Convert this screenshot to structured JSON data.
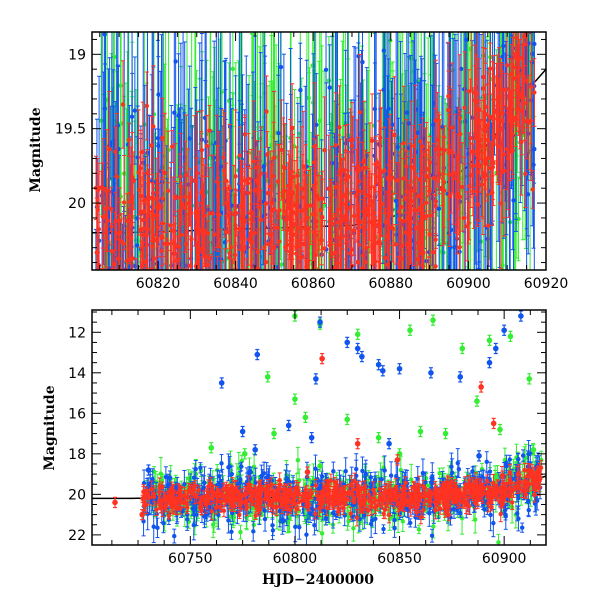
{
  "colors": {
    "green": "#33ee33",
    "blue": "#1155ee",
    "red": "#ff3322",
    "curve": "#000000"
  },
  "chart_data": [
    {
      "type": "scatter",
      "id": "top",
      "xlim": [
        60803,
        60920
      ],
      "ylim": [
        20.45,
        18.85
      ],
      "inverted_y": true,
      "xticks": [
        60820,
        60840,
        60860,
        60880,
        60900,
        60920
      ],
      "yticks": [
        19,
        19.5,
        20
      ],
      "ytick_labels": [
        "19",
        "19.5",
        "20"
      ],
      "ylabel": "Magnitude",
      "xlabel": "",
      "x_data_start": 60804,
      "x_data_end": 60917,
      "model_curve": {
        "x": [
          60803,
          60811,
          60870,
          60880,
          60890,
          60900,
          60910,
          60915,
          60920
        ],
        "y": [
          20.2,
          20.2,
          20.15,
          20.1,
          19.95,
          19.75,
          19.45,
          19.25,
          19.1
        ]
      },
      "series": [
        {
          "color_key": "green"
        },
        {
          "color_key": "blue"
        },
        {
          "color_key": "red"
        }
      ]
    },
    {
      "type": "scatter",
      "id": "bottom",
      "xlim": [
        60703,
        60920
      ],
      "ylim": [
        22.5,
        10.9
      ],
      "inverted_y": true,
      "xticks": [
        60750,
        60800,
        60850,
        60900
      ],
      "yticks": [
        12,
        14,
        16,
        18,
        20,
        22
      ],
      "ytick_labels": [
        "12",
        "14",
        "16",
        "18",
        "20",
        "22"
      ],
      "ylabel": "Magnitude",
      "xlabel": "HJD−2400000",
      "x_data_start": 60727,
      "x_data_end": 60918,
      "model_curve": {
        "x": [
          60703,
          60720,
          60800,
          60850,
          60900,
          60920
        ],
        "y": [
          20.2,
          20.2,
          20.15,
          20.15,
          19.8,
          19.1
        ]
      },
      "series": [
        {
          "color_key": "green"
        },
        {
          "color_key": "blue"
        },
        {
          "color_key": "red"
        }
      ],
      "outliers": {
        "green": [
          [
            60800,
            11.2
          ],
          [
            60812,
            11.6
          ],
          [
            60830,
            12.1
          ],
          [
            60855,
            11.9
          ],
          [
            60866,
            11.4
          ],
          [
            60880,
            12.8
          ],
          [
            60893,
            12.4
          ],
          [
            60903,
            12.2
          ],
          [
            60912,
            14.3
          ],
          [
            60800,
            15.3
          ],
          [
            60805,
            16.2
          ],
          [
            60787,
            14.2
          ],
          [
            60760,
            17.7
          ],
          [
            60790,
            17.0
          ],
          [
            60825,
            16.3
          ],
          [
            60840,
            17.2
          ],
          [
            60860,
            16.9
          ],
          [
            60872,
            17.0
          ],
          [
            60887,
            15.4
          ],
          [
            60898,
            16.8
          ],
          [
            60914,
            17.8
          ],
          [
            60850,
            18.0
          ],
          [
            60812,
            18.6
          ],
          [
            60776,
            18.0
          ]
        ],
        "blue": [
          [
            60812,
            11.5
          ],
          [
            60782,
            13.1
          ],
          [
            60765,
            14.5
          ],
          [
            60775,
            16.9
          ],
          [
            60797,
            16.6
          ],
          [
            60810,
            14.3
          ],
          [
            60825,
            12.5
          ],
          [
            60830,
            12.8
          ],
          [
            60832,
            13.2
          ],
          [
            60840,
            13.6
          ],
          [
            60842,
            13.9
          ],
          [
            60850,
            13.8
          ],
          [
            60865,
            14.0
          ],
          [
            60879,
            14.2
          ],
          [
            60893,
            13.5
          ],
          [
            60896,
            12.8
          ],
          [
            60900,
            11.9
          ],
          [
            60908,
            11.2
          ],
          [
            60781,
            17.8
          ],
          [
            60808,
            17.2
          ],
          [
            60845,
            17.5
          ],
          [
            60888,
            18.1
          ],
          [
            60730,
            18.8
          ]
        ],
        "red": [
          [
            60813,
            13.3
          ],
          [
            60889,
            14.7
          ],
          [
            60895,
            16.5
          ],
          [
            60830,
            17.5
          ],
          [
            60849,
            18.3
          ],
          [
            60714,
            20.4
          ],
          [
            60727,
            21.0
          ],
          [
            60806,
            18.9
          ]
        ]
      }
    }
  ]
}
